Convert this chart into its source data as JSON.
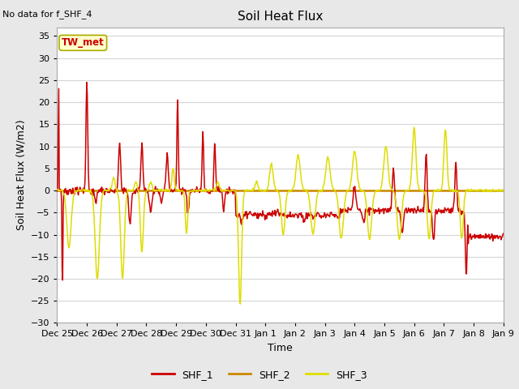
{
  "title": "Soil Heat Flux",
  "xlabel": "Time",
  "ylabel": "Soil Heat Flux (W/m2)",
  "ylim": [
    -30,
    37
  ],
  "yticks": [
    -30,
    -25,
    -20,
    -15,
    -10,
    -5,
    0,
    5,
    10,
    15,
    20,
    25,
    30,
    35
  ],
  "note": "No data for f_SHF_4",
  "legend_label": "TW_met",
  "series_labels": [
    "SHF_1",
    "SHF_2",
    "SHF_3"
  ],
  "series_colors": [
    "#cc0000",
    "#cc8800",
    "#dddd00"
  ],
  "background_color": "#e8e8e8",
  "plot_bg_color": "#ffffff",
  "grid_color": "#d8d8d8",
  "tick_labels": [
    "Dec 25",
    "Dec 26",
    "Dec 27",
    "Dec 28",
    "Dec 29",
    "Dec 30",
    "Dec 31",
    "Jan 1",
    "Jan 2",
    "Jan 3",
    "Jan 4",
    "Jan 5",
    "Jan 6",
    "Jan 7",
    "Jan 8",
    "Jan 9"
  ],
  "n_points": 800
}
